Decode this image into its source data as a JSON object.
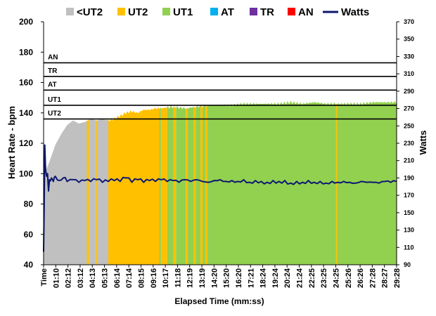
{
  "chart_data": {
    "type": "area",
    "xlabel": "Elapsed Time (mm:ss)",
    "ylabel": "Heart Rate - bpm",
    "y2label": "Watts",
    "ylim": [
      40,
      200
    ],
    "y2lim": [
      90,
      370
    ],
    "y_ticks": [
      40,
      60,
      80,
      100,
      120,
      140,
      160,
      180,
      200
    ],
    "y2_ticks": [
      90,
      110,
      130,
      150,
      170,
      190,
      210,
      230,
      250,
      270,
      290,
      310,
      330,
      350,
      370
    ],
    "x_range_seconds": [
      0,
      1800
    ],
    "x_tick_labels": [
      "Time",
      "01:10",
      "02:12",
      "03:12",
      "04:13",
      "05:13",
      "06:14",
      "07:14",
      "08:15",
      "09:16",
      "10:17",
      "11:18",
      "12:19",
      "13:19",
      "14:20",
      "15:20",
      "16:20",
      "17:21",
      "18:24",
      "19:24",
      "20:24",
      "21:24",
      "22:25",
      "23:25",
      "24:25",
      "25:26",
      "26:26",
      "27:28",
      "28:27",
      "29:28"
    ],
    "legend": [
      {
        "name": "<UT2",
        "color": "#c0c0c0",
        "kind": "box"
      },
      {
        "name": "UT2",
        "color": "#ffc000",
        "kind": "box"
      },
      {
        "name": "UT1",
        "color": "#92d050",
        "kind": "box"
      },
      {
        "name": "AT",
        "color": "#00b0f0",
        "kind": "box"
      },
      {
        "name": "TR",
        "color": "#7030a0",
        "kind": "box"
      },
      {
        "name": "AN",
        "color": "#ff0000",
        "kind": "box"
      },
      {
        "name": "Watts",
        "color": "#0d1770",
        "kind": "line"
      }
    ],
    "zone_thresholds": [
      {
        "name": "AN",
        "bpm": 173
      },
      {
        "name": "TR",
        "bpm": 164
      },
      {
        "name": "AT",
        "bpm": 155
      },
      {
        "name": "UT1",
        "bpm": 145
      },
      {
        "name": "UT2",
        "bpm": 136
      }
    ],
    "heart_rate": {
      "x": [
        0,
        5,
        15,
        30,
        60,
        90,
        120,
        150,
        180,
        210,
        240,
        270,
        300,
        330,
        360,
        390,
        420,
        450,
        480,
        510,
        540,
        570,
        600,
        660,
        720,
        780,
        840,
        900,
        960,
        1020,
        1080,
        1140,
        1200,
        1260,
        1320,
        1380,
        1440,
        1500,
        1560,
        1620,
        1680,
        1740,
        1800
      ],
      "y": [
        42,
        118,
        103,
        108,
        119,
        126,
        132,
        135,
        133,
        134,
        136,
        135,
        136,
        135,
        136,
        138,
        140,
        141,
        140,
        142,
        142,
        143,
        143,
        144,
        143,
        144,
        145,
        145,
        145,
        146,
        146,
        146,
        146,
        147,
        146,
        147,
        146,
        146,
        146,
        146,
        147,
        147,
        147
      ]
    },
    "zone_segments": [
      {
        "zone": "<UT2",
        "from": 0,
        "to": 220
      },
      {
        "zone": "UT2",
        "from": 220,
        "to": 232
      },
      {
        "zone": "<UT2",
        "from": 232,
        "to": 268
      },
      {
        "zone": "UT2",
        "from": 268,
        "to": 274
      },
      {
        "zone": "<UT2",
        "from": 274,
        "to": 330
      },
      {
        "zone": "UT2",
        "from": 330,
        "to": 590
      },
      {
        "zone": "UT1",
        "from": 590,
        "to": 598
      },
      {
        "zone": "UT2",
        "from": 598,
        "to": 630
      },
      {
        "zone": "UT1",
        "from": 630,
        "to": 662
      },
      {
        "zone": "UT2",
        "from": 662,
        "to": 675
      },
      {
        "zone": "UT1",
        "from": 675,
        "to": 725
      },
      {
        "zone": "UT2",
        "from": 725,
        "to": 735
      },
      {
        "zone": "UT1",
        "from": 735,
        "to": 765
      },
      {
        "zone": "UT2",
        "from": 765,
        "to": 775
      },
      {
        "zone": "UT1",
        "from": 775,
        "to": 800
      },
      {
        "zone": "UT2",
        "from": 800,
        "to": 812
      },
      {
        "zone": "UT1",
        "from": 812,
        "to": 825
      },
      {
        "zone": "UT2",
        "from": 825,
        "to": 835
      },
      {
        "zone": "UT1",
        "from": 835,
        "to": 1490
      },
      {
        "zone": "UT2",
        "from": 1490,
        "to": 1496
      },
      {
        "zone": "UT1",
        "from": 1496,
        "to": 1800
      }
    ],
    "watts": {
      "x": [
        0,
        3,
        6,
        10,
        15,
        20,
        25,
        30,
        40,
        50,
        60,
        80,
        100,
        120,
        150,
        180,
        210,
        240,
        270,
        300,
        330,
        360,
        390,
        420,
        450,
        480,
        510,
        540,
        570,
        600,
        630,
        660,
        690,
        720,
        750,
        780,
        810,
        840,
        870,
        900,
        930,
        960,
        990,
        1020,
        1050,
        1080,
        1110,
        1140,
        1170,
        1200,
        1230,
        1260,
        1290,
        1320,
        1350,
        1380,
        1410,
        1440,
        1470,
        1500,
        1530,
        1560,
        1590,
        1620,
        1650,
        1680,
        1710,
        1740,
        1770,
        1800
      ],
      "y": [
        105,
        155,
        228,
        200,
        192,
        195,
        175,
        188,
        190,
        186,
        192,
        187,
        190,
        186,
        188,
        185,
        187,
        186,
        188,
        185,
        186,
        187,
        186,
        190,
        185,
        188,
        185,
        187,
        186,
        188,
        186,
        187,
        185,
        188,
        186,
        188,
        186,
        185,
        187,
        188,
        186,
        187,
        186,
        188,
        185,
        187,
        186,
        185,
        187,
        186,
        187,
        184,
        186,
        185,
        187,
        185,
        186,
        184,
        186,
        185,
        186,
        185,
        184,
        186,
        185,
        185,
        184,
        186,
        185,
        186
      ]
    }
  }
}
